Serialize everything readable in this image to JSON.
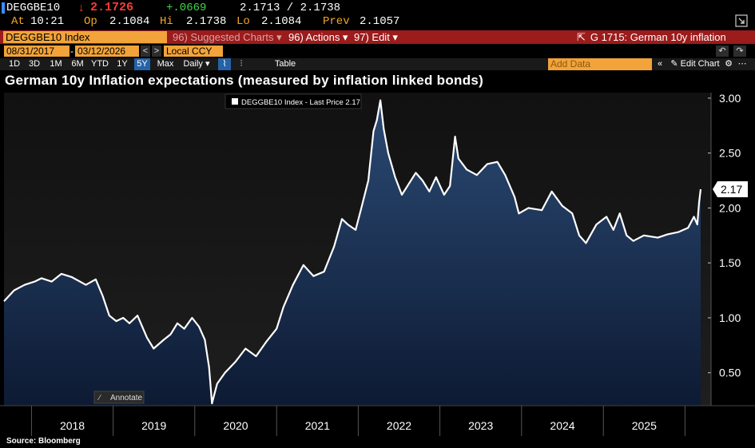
{
  "header": {
    "ticker": "DEGGBE10",
    "direction_arrow": "↓",
    "last_price": "2.1726",
    "change": "+.0669",
    "bid_ask": "2.1713 / 2.1738",
    "at_label": "At",
    "time": "10:21",
    "op_label": "Op",
    "open": "2.1084",
    "hi_label": "Hi",
    "high": "2.1738",
    "lo_label": "Lo",
    "low": "2.1084",
    "prev_label": "Prev",
    "prev": "2.1057"
  },
  "menu": {
    "security": "DEGGBE10 Index",
    "suggested": "96) Suggested Charts ▾",
    "actions": "96) Actions ▾",
    "edit": "97) Edit ▾",
    "page_title": "G 1715: German 10y inflation"
  },
  "dates": {
    "start": "08/31/2017",
    "end": "03/12/2026",
    "currency": "Local CCY"
  },
  "toolbar": {
    "ranges": [
      "1D",
      "3D",
      "1M",
      "6M",
      "YTD",
      "1Y",
      "5Y",
      "Max"
    ],
    "selected_range": "5Y",
    "frequency": "Daily ▾",
    "table": "Table",
    "add_data": "Add Data",
    "edit_chart": "Edit Chart"
  },
  "colors": {
    "accent_orange": "#f2a33a",
    "bar_red": "#9c1b1b",
    "price_down": "#ff3b30",
    "change_up": "#41d64a",
    "area_fill_top": "#2b4a74",
    "area_fill_bottom": "#0d1a33"
  },
  "annotate": "Annotate",
  "source": "Source: Bloomberg",
  "chart_data": {
    "type": "area",
    "title": "German 10y Inflation expectations (measured by inflation linked bonds)",
    "legend": "DEGGBE10 Index - Last Price 2.17",
    "legend_position": "top-center",
    "last_value_label": "2.17",
    "x_tick_labels": [
      "2018",
      "2019",
      "2020",
      "2021",
      "2022",
      "2023",
      "2024",
      "2025"
    ],
    "y_ticks": [
      0.5,
      1.0,
      1.5,
      2.0,
      2.5,
      3.0
    ],
    "y_tick_labels": [
      "0.50",
      "1.00",
      "1.50",
      "2.00",
      "2.50",
      "3.00"
    ],
    "ylim": [
      0.2,
      3.05
    ],
    "xlim": [
      "2017-08-31",
      "2026-03-12"
    ],
    "grid": false,
    "series": [
      {
        "name": "DEGGBE10 Index",
        "points": [
          [
            "2017-08-31",
            1.15
          ],
          [
            "2017-10-15",
            1.25
          ],
          [
            "2017-12-01",
            1.3
          ],
          [
            "2018-01-15",
            1.33
          ],
          [
            "2018-02-15",
            1.36
          ],
          [
            "2018-04-01",
            1.33
          ],
          [
            "2018-05-15",
            1.4
          ],
          [
            "2018-07-01",
            1.37
          ],
          [
            "2018-09-01",
            1.3
          ],
          [
            "2018-10-15",
            1.35
          ],
          [
            "2018-11-15",
            1.2
          ],
          [
            "2018-12-15",
            1.02
          ],
          [
            "2019-01-15",
            0.97
          ],
          [
            "2019-02-15",
            1.0
          ],
          [
            "2019-03-15",
            0.95
          ],
          [
            "2019-04-20",
            1.02
          ],
          [
            "2019-06-01",
            0.82
          ],
          [
            "2019-07-01",
            0.72
          ],
          [
            "2019-08-15",
            0.8
          ],
          [
            "2019-09-15",
            0.85
          ],
          [
            "2019-10-15",
            0.95
          ],
          [
            "2019-11-15",
            0.9
          ],
          [
            "2019-12-20",
            1.0
          ],
          [
            "2020-01-20",
            0.92
          ],
          [
            "2020-02-15",
            0.8
          ],
          [
            "2020-03-05",
            0.55
          ],
          [
            "2020-03-18",
            0.22
          ],
          [
            "2020-04-10",
            0.4
          ],
          [
            "2020-05-15",
            0.5
          ],
          [
            "2020-07-01",
            0.6
          ],
          [
            "2020-08-15",
            0.72
          ],
          [
            "2020-10-01",
            0.65
          ],
          [
            "2020-11-15",
            0.78
          ],
          [
            "2021-01-01",
            0.9
          ],
          [
            "2021-02-01",
            1.1
          ],
          [
            "2021-03-15",
            1.3
          ],
          [
            "2021-05-01",
            1.48
          ],
          [
            "2021-06-15",
            1.38
          ],
          [
            "2021-08-01",
            1.42
          ],
          [
            "2021-09-15",
            1.65
          ],
          [
            "2021-10-20",
            1.9
          ],
          [
            "2021-11-15",
            1.85
          ],
          [
            "2021-12-20",
            1.8
          ],
          [
            "2022-01-15",
            2.0
          ],
          [
            "2022-02-15",
            2.25
          ],
          [
            "2022-03-10",
            2.7
          ],
          [
            "2022-03-25",
            2.8
          ],
          [
            "2022-04-10",
            2.98
          ],
          [
            "2022-04-25",
            2.72
          ],
          [
            "2022-05-15",
            2.5
          ],
          [
            "2022-06-15",
            2.28
          ],
          [
            "2022-07-15",
            2.12
          ],
          [
            "2022-08-15",
            2.22
          ],
          [
            "2022-09-15",
            2.32
          ],
          [
            "2022-10-15",
            2.25
          ],
          [
            "2022-11-15",
            2.15
          ],
          [
            "2022-12-15",
            2.28
          ],
          [
            "2023-01-20",
            2.12
          ],
          [
            "2023-02-15",
            2.2
          ],
          [
            "2023-03-10",
            2.65
          ],
          [
            "2023-03-25",
            2.45
          ],
          [
            "2023-05-01",
            2.35
          ],
          [
            "2023-06-15",
            2.3
          ],
          [
            "2023-08-01",
            2.4
          ],
          [
            "2023-09-15",
            2.42
          ],
          [
            "2023-10-20",
            2.3
          ],
          [
            "2023-12-01",
            2.1
          ],
          [
            "2023-12-20",
            1.95
          ],
          [
            "2024-02-01",
            2.0
          ],
          [
            "2024-04-01",
            1.98
          ],
          [
            "2024-05-15",
            2.15
          ],
          [
            "2024-07-01",
            2.02
          ],
          [
            "2024-08-15",
            1.95
          ],
          [
            "2024-09-15",
            1.75
          ],
          [
            "2024-10-15",
            1.68
          ],
          [
            "2024-12-01",
            1.85
          ],
          [
            "2025-01-15",
            1.92
          ],
          [
            "2025-02-15",
            1.8
          ],
          [
            "2025-03-15",
            1.95
          ],
          [
            "2025-04-15",
            1.75
          ],
          [
            "2025-05-15",
            1.7
          ],
          [
            "2025-07-01",
            1.75
          ],
          [
            "2025-09-01",
            1.73
          ],
          [
            "2025-10-15",
            1.76
          ],
          [
            "2025-12-01",
            1.78
          ],
          [
            "2026-01-15",
            1.82
          ],
          [
            "2026-02-10",
            1.92
          ],
          [
            "2026-02-25",
            1.85
          ],
          [
            "2026-03-05",
            2.05
          ],
          [
            "2026-03-12",
            2.17
          ]
        ]
      }
    ]
  }
}
